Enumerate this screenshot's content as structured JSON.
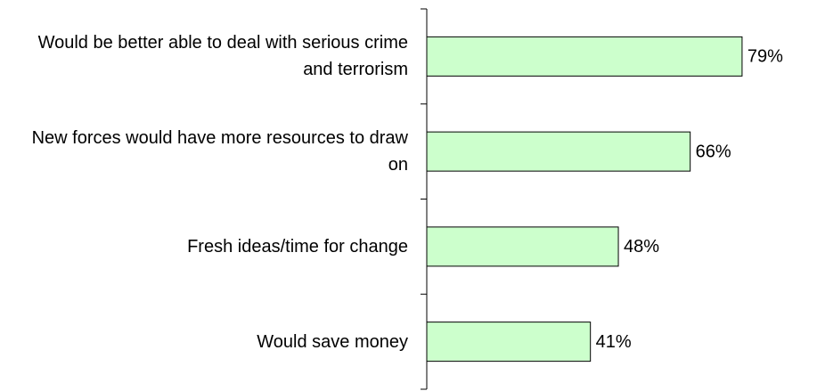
{
  "chart_data": {
    "type": "bar",
    "orientation": "horizontal",
    "categories": [
      "Would be better able to deal with serious crime and terrorism",
      "New forces would have more resources to draw on",
      "Fresh ideas/time for change",
      "Would save money"
    ],
    "values": [
      79,
      66,
      48,
      41
    ],
    "value_labels": [
      "79%",
      "66%",
      "48%",
      "41%"
    ],
    "color": "#ccffcc"
  }
}
